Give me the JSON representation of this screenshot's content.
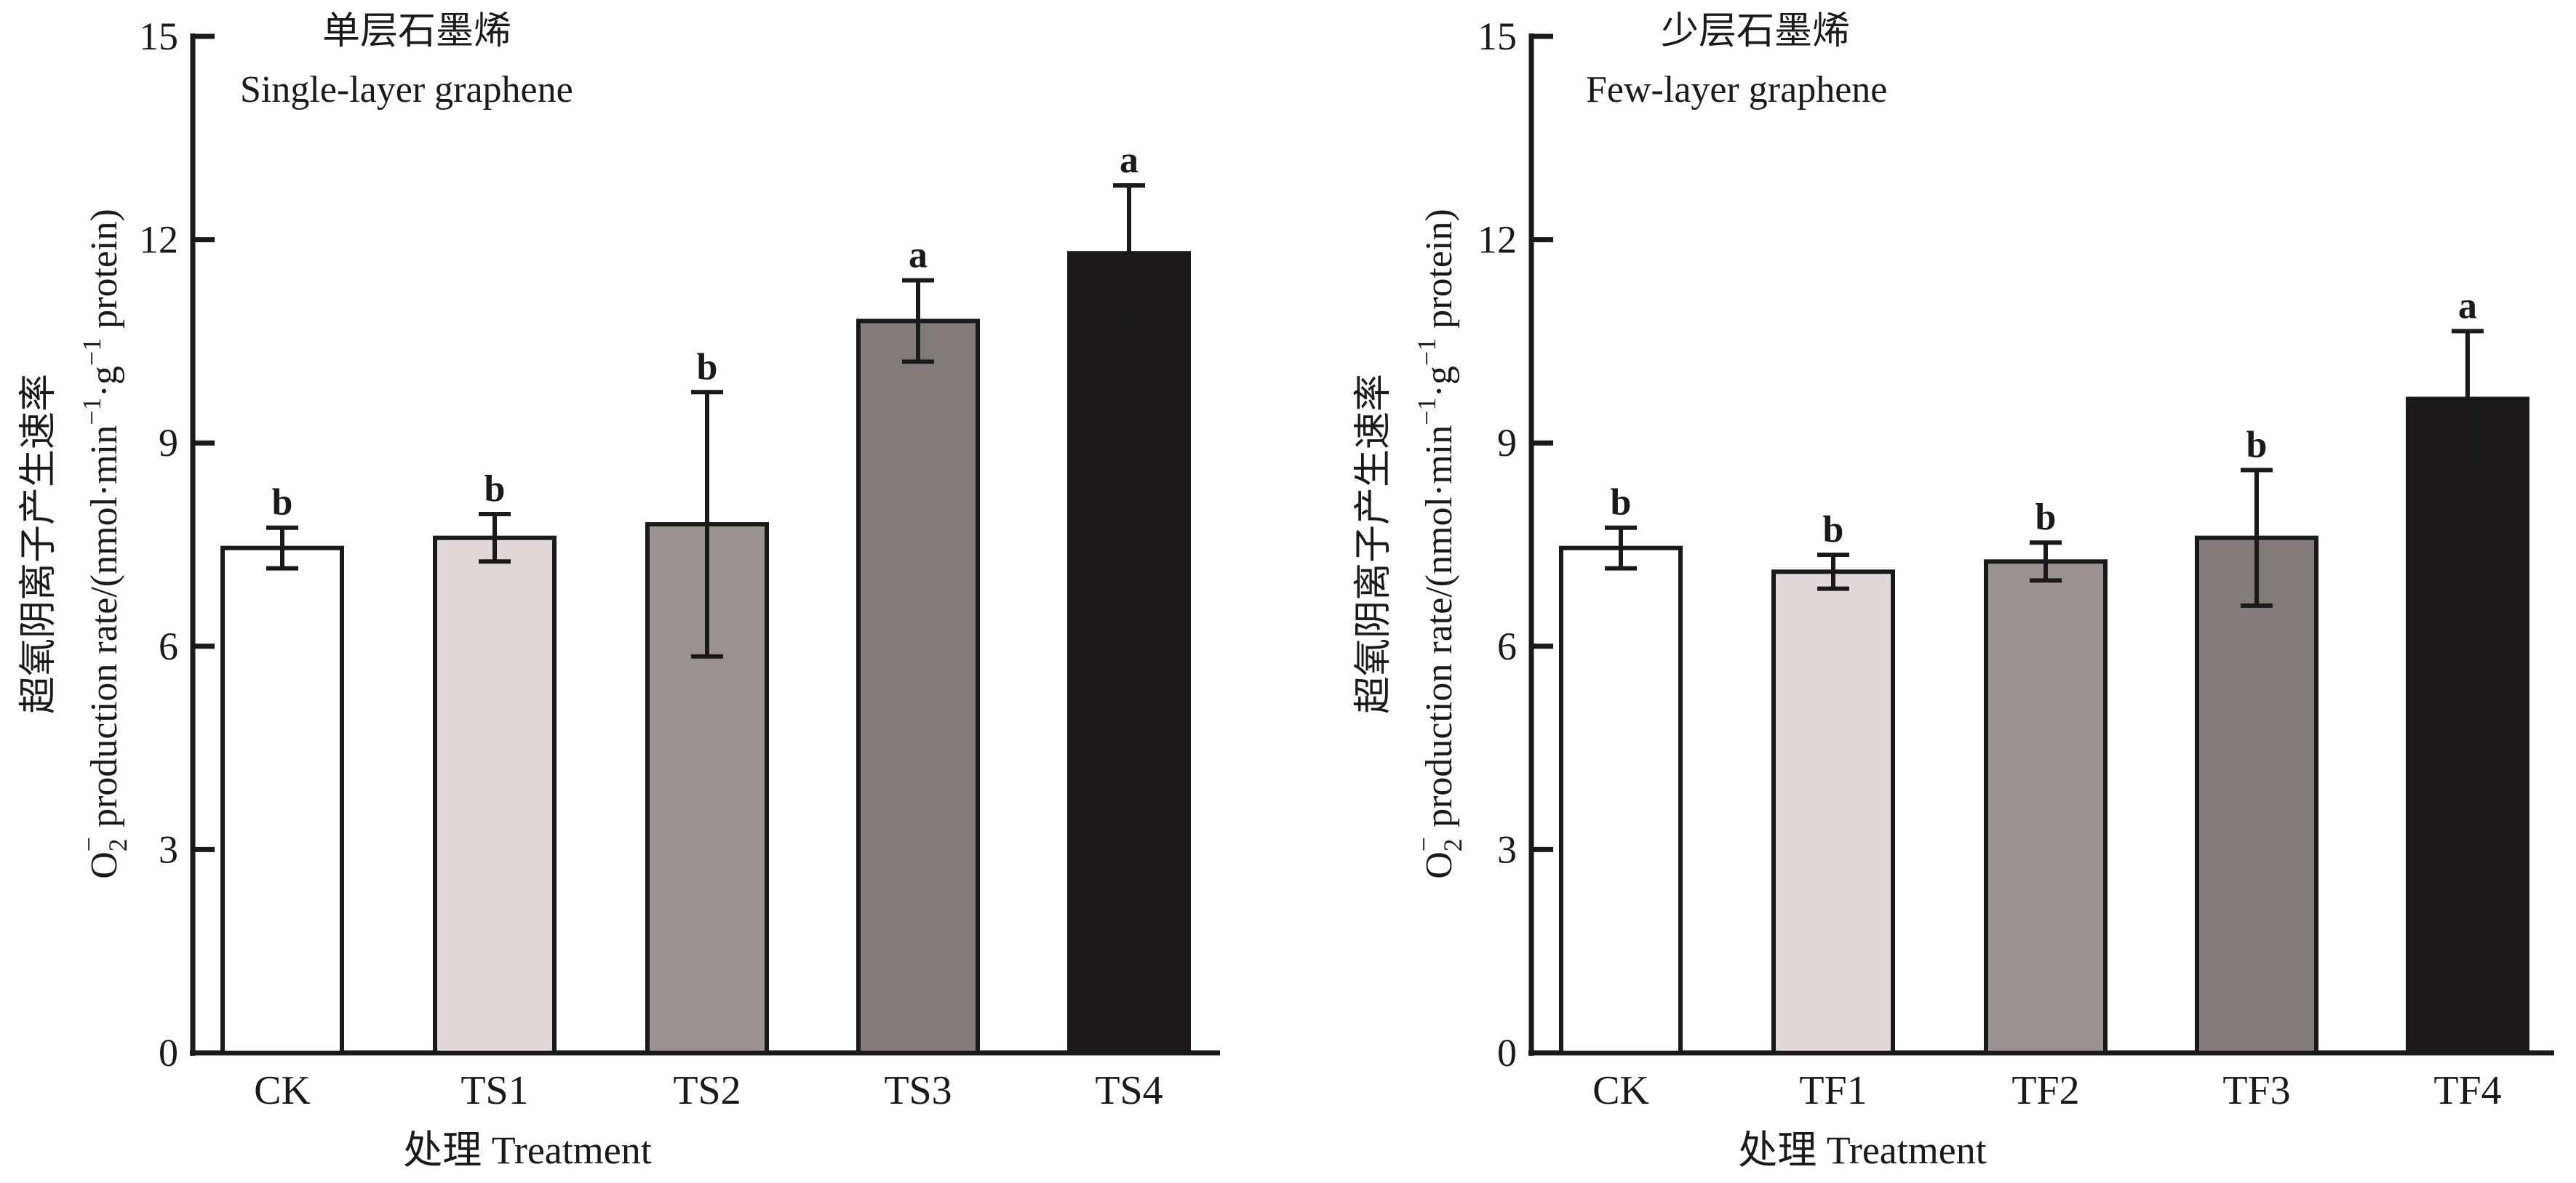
{
  "chart_data": [
    {
      "type": "bar",
      "title_cn": "单层石墨烯",
      "title": "Single-layer graphene",
      "ylabel_cn": "超氧阴离子产生速率",
      "ylabel_prefix": "O",
      "ylabel_sub": "2",
      "ylabel_sup": "−",
      "ylabel_main": " production rate/(nmol·min",
      "ylabel_unit_sup1": "−1",
      "ylabel_mid": "·g",
      "ylabel_unit_sup2": "−1",
      "ylabel_end": " protein)",
      "xlabel": "处理 Treatment",
      "ylim": [
        0,
        15
      ],
      "yticks": [
        "0",
        "3",
        "6",
        "9",
        "12",
        "15"
      ],
      "categories": [
        "CK",
        "TS1",
        "TS2",
        "TS3",
        "TS4"
      ],
      "values": [
        7.45,
        7.6,
        7.8,
        10.8,
        11.8
      ],
      "errors": [
        0.3,
        0.35,
        1.95,
        0.6,
        1.0
      ],
      "significance": [
        "b",
        "b",
        "b",
        "a",
        "a"
      ],
      "colors": [
        "#ffffff",
        "#e1d9d8",
        "#9c9391",
        "#837b79",
        "#1d1a19"
      ]
    },
    {
      "type": "bar",
      "title_cn": "少层石墨烯",
      "title": "Few-layer graphene",
      "ylabel_cn": "超氧阴离子产生速率",
      "ylabel_prefix": "O",
      "ylabel_sub": "2",
      "ylabel_sup": "−",
      "ylabel_main": " production rate/(nmol·min",
      "ylabel_unit_sup1": "−1",
      "ylabel_mid": "·g",
      "ylabel_unit_sup2": "−1",
      "ylabel_end": " protein)",
      "xlabel": "处理 Treatment",
      "ylim": [
        0,
        15
      ],
      "yticks": [
        "0",
        "3",
        "6",
        "9",
        "12",
        "15"
      ],
      "categories": [
        "CK",
        "TF1",
        "TF2",
        "TF3",
        "TF4"
      ],
      "values": [
        7.45,
        7.1,
        7.25,
        7.6,
        9.65
      ],
      "errors": [
        0.3,
        0.25,
        0.28,
        1.0,
        1.0
      ],
      "significance": [
        "b",
        "b",
        "b",
        "b",
        "a"
      ],
      "colors": [
        "#ffffff",
        "#e1d9d8",
        "#9c9391",
        "#837b79",
        "#1d1a19"
      ]
    }
  ]
}
